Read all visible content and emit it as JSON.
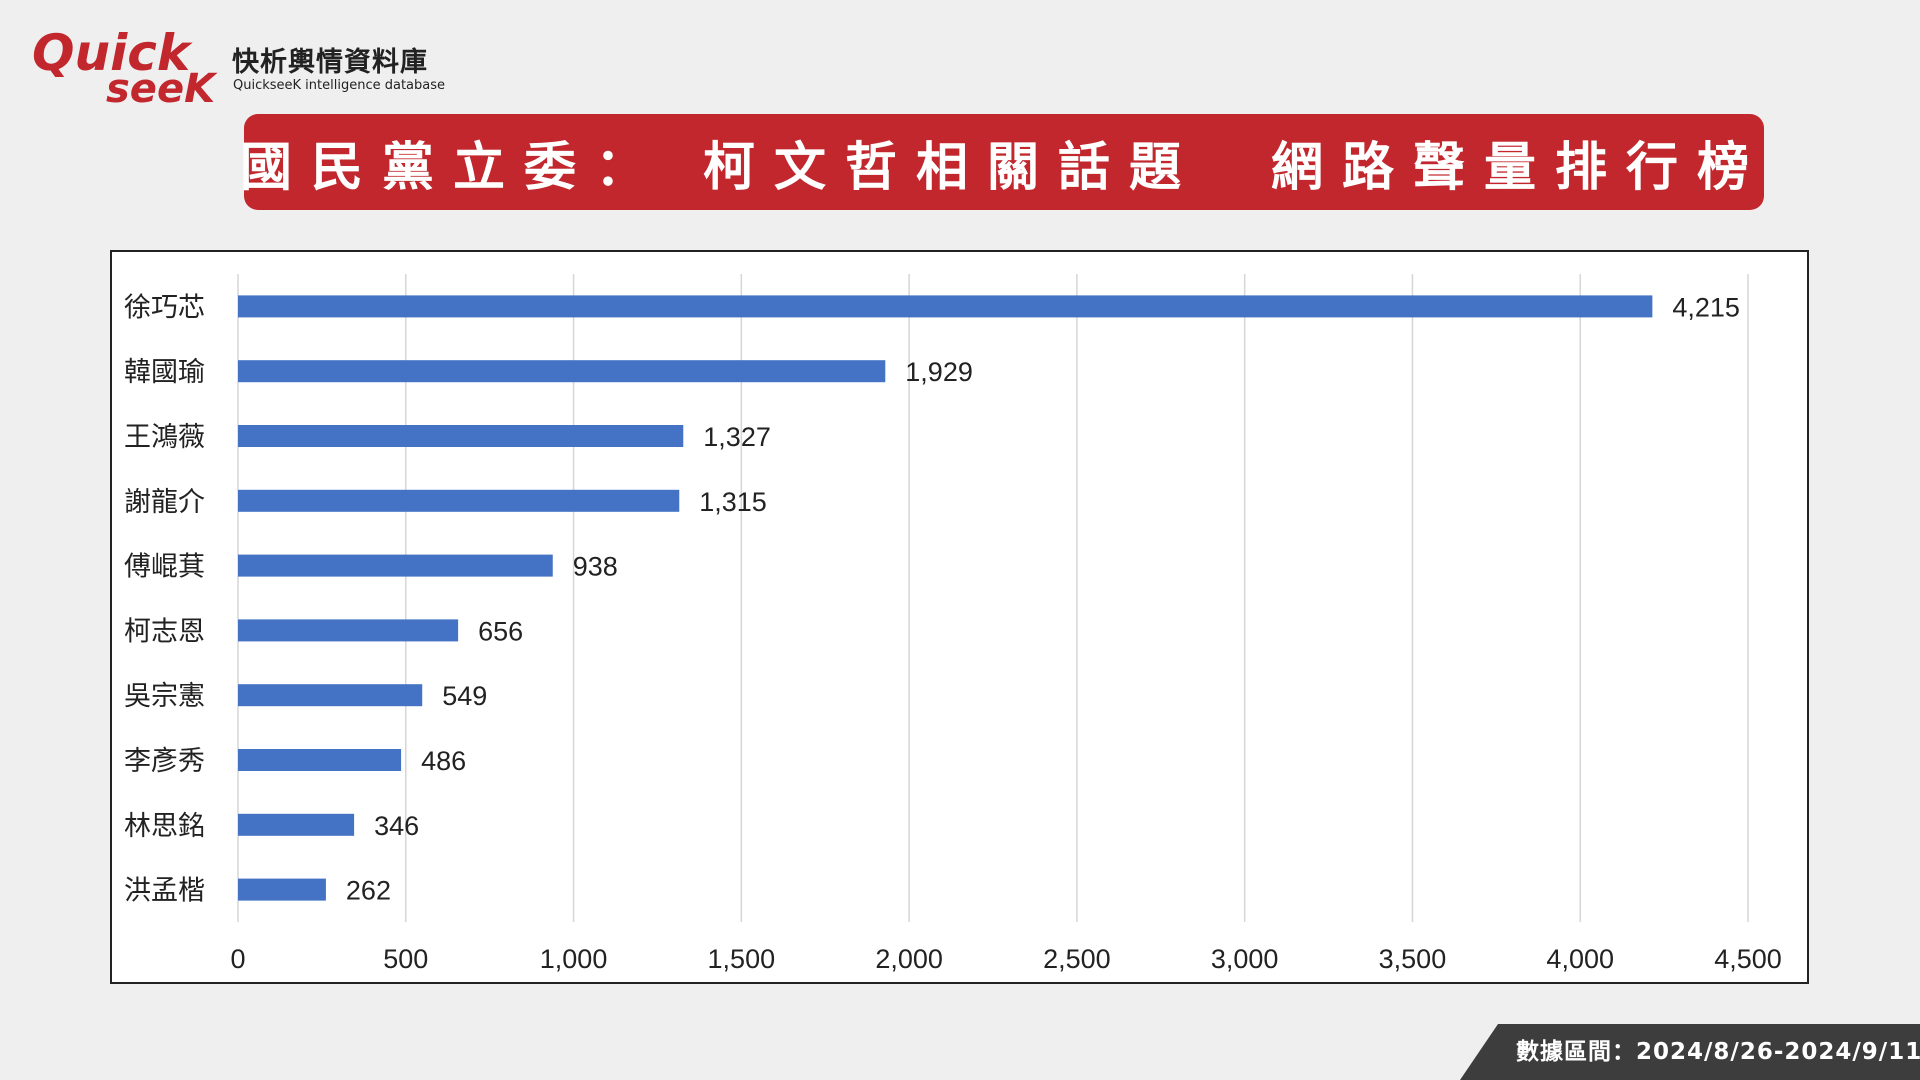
{
  "brand": {
    "logo_line1": "Quick",
    "logo_line2": "seeK",
    "name_cn": "快析輿情資料庫",
    "name_en": "QuickseeK intelligence database"
  },
  "title": "國民黨立委： 柯文哲相關話題　網路聲量排行榜",
  "footer": "數據區間：2024/8/26-2024/9/11",
  "colors": {
    "brand_red": "#c1272d",
    "bar": "#4472c4",
    "footer_bg": "#3d3d3d"
  },
  "chart_data": {
    "type": "bar",
    "orientation": "horizontal",
    "categories": [
      "徐巧芯",
      "韓國瑜",
      "王鴻薇",
      "謝龍介",
      "傅崐萁",
      "柯志恩",
      "吳宗憲",
      "李彥秀",
      "林思銘",
      "洪孟楷"
    ],
    "values": [
      4215,
      1929,
      1327,
      1315,
      938,
      656,
      549,
      486,
      346,
      262
    ],
    "value_labels": [
      "4,215",
      "1,929",
      "1,327",
      "1,315",
      "938",
      "656",
      "549",
      "486",
      "346",
      "262"
    ],
    "xlim": [
      0,
      4500
    ],
    "xticks": [
      0,
      500,
      1000,
      1500,
      2000,
      2500,
      3000,
      3500,
      4000,
      4500
    ],
    "xtick_labels": [
      "0",
      "500",
      "1,000",
      "1,500",
      "2,000",
      "2,500",
      "3,000",
      "3,500",
      "4,000",
      "4,500"
    ],
    "grid": "vertical",
    "legend": "none",
    "title": "",
    "xlabel": "",
    "ylabel": ""
  }
}
